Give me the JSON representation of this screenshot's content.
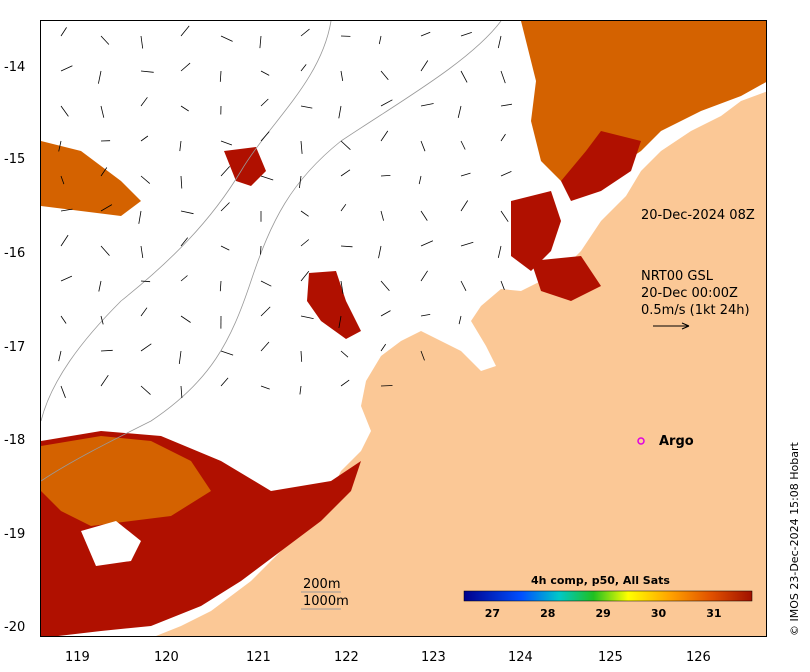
{
  "axes": {
    "x_ticks": [
      "119",
      "120",
      "121",
      "122",
      "123",
      "124",
      "125",
      "126"
    ],
    "y_ticks": [
      "-14",
      "-15",
      "-16",
      "-17",
      "-18",
      "-19",
      "-20"
    ]
  },
  "annotations": {
    "track_time": "20-Dec-2024 08Z",
    "current_source": "NRT00 GSL",
    "current_date": "20-Dec 00:00Z",
    "current_scale": "0.5m/s (1kt 24h)",
    "argo_label": "Argo",
    "depth_200": "200m",
    "depth_1000": "1000m"
  },
  "colorbar": {
    "title": "4h comp, p50, All Sats",
    "ticks": [
      "27",
      "28",
      "29",
      "30",
      "31"
    ],
    "range": [
      26.5,
      31.7
    ]
  },
  "credit": "© IMOS 23-Dec-2024 15:08 Hobart",
  "colors": {
    "land": "#fbc896",
    "sst_warm": "#b01000",
    "sst_mid": "#e07a00",
    "argo": "#e000e0"
  }
}
